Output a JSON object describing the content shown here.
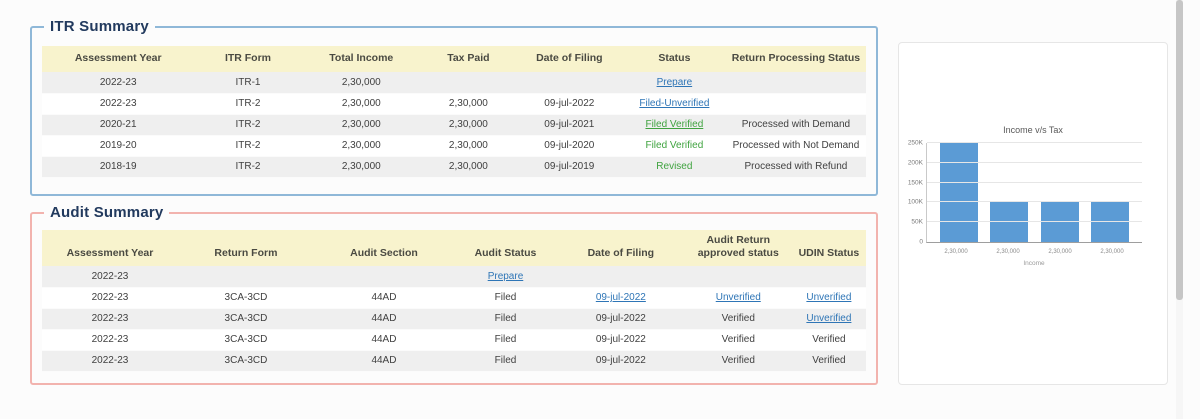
{
  "itr": {
    "title": "ITR Summary",
    "columns": [
      "Assessment Year",
      "ITR Form",
      "Total Income",
      "Tax Paid",
      "Date of Filing",
      "Status",
      "Return Processing Status"
    ],
    "rows": [
      [
        {
          "t": "2022-23"
        },
        {
          "t": "ITR-1"
        },
        {
          "t": "2,30,000"
        },
        {
          "t": ""
        },
        {
          "t": ""
        },
        {
          "t": "Prepare",
          "s": "link"
        },
        {
          "t": ""
        }
      ],
      [
        {
          "t": "2022-23"
        },
        {
          "t": "ITR-2"
        },
        {
          "t": "2,30,000"
        },
        {
          "t": "2,30,000"
        },
        {
          "t": "09-jul-2022"
        },
        {
          "t": "Filed-Unverified",
          "s": "link"
        },
        {
          "t": ""
        }
      ],
      [
        {
          "t": "2020-21"
        },
        {
          "t": "ITR-2"
        },
        {
          "t": "2,30,000"
        },
        {
          "t": "2,30,000"
        },
        {
          "t": "09-jul-2021"
        },
        {
          "t": "Filed Verified",
          "s": "glink"
        },
        {
          "t": "Processed with Demand"
        }
      ],
      [
        {
          "t": "2019-20"
        },
        {
          "t": "ITR-2"
        },
        {
          "t": "2,30,000"
        },
        {
          "t": "2,30,000"
        },
        {
          "t": "09-jul-2020"
        },
        {
          "t": "Filed Verified",
          "s": "green"
        },
        {
          "t": "Processed with Not Demand"
        }
      ],
      [
        {
          "t": "2018-19"
        },
        {
          "t": "ITR-2"
        },
        {
          "t": "2,30,000"
        },
        {
          "t": "2,30,000"
        },
        {
          "t": "09-jul-2019"
        },
        {
          "t": "Revised",
          "s": "green"
        },
        {
          "t": "Processed with Refund"
        }
      ]
    ]
  },
  "audit": {
    "title": "Audit Summary",
    "columns": [
      "Assessment Year",
      "Return Form",
      "Audit Section",
      "Audit Status",
      "Date of Filing",
      "Audit Return approved status",
      "UDIN Status"
    ],
    "rows": [
      [
        {
          "t": "2022-23"
        },
        {
          "t": ""
        },
        {
          "t": ""
        },
        {
          "t": "Prepare",
          "s": "link"
        },
        {
          "t": ""
        },
        {
          "t": ""
        },
        {
          "t": ""
        }
      ],
      [
        {
          "t": "2022-23"
        },
        {
          "t": "3CA-3CD"
        },
        {
          "t": "44AD"
        },
        {
          "t": "Filed"
        },
        {
          "t": "09-jul-2022",
          "s": "link"
        },
        {
          "t": "Unverified",
          "s": "link"
        },
        {
          "t": "Unverified",
          "s": "link"
        }
      ],
      [
        {
          "t": "2022-23"
        },
        {
          "t": "3CA-3CD"
        },
        {
          "t": "44AD"
        },
        {
          "t": "Filed"
        },
        {
          "t": "09-jul-2022"
        },
        {
          "t": "Verified"
        },
        {
          "t": "Unverified",
          "s": "link"
        }
      ],
      [
        {
          "t": "2022-23"
        },
        {
          "t": "3CA-3CD"
        },
        {
          "t": "44AD"
        },
        {
          "t": "Filed"
        },
        {
          "t": "09-jul-2022"
        },
        {
          "t": "Verified"
        },
        {
          "t": "Verified"
        }
      ],
      [
        {
          "t": "2022-23"
        },
        {
          "t": "3CA-3CD"
        },
        {
          "t": "44AD"
        },
        {
          "t": "Filed"
        },
        {
          "t": "09-jul-2022"
        },
        {
          "t": "Verified"
        },
        {
          "t": "Verified"
        }
      ]
    ]
  },
  "chart_data": {
    "type": "bar",
    "title": "Income v/s Tax",
    "xlabel": "Income",
    "categories": [
      "2,30,000",
      "2,30,000",
      "2,30,000",
      "2,30,000"
    ],
    "values": [
      250000,
      100000,
      100000,
      100000
    ],
    "ylim": [
      0,
      250000
    ],
    "yticks": [
      0,
      50000,
      100000,
      150000,
      200000,
      250000
    ],
    "ytick_labels": [
      "0",
      "50K",
      "100K",
      "150K",
      "200K",
      "250K"
    ],
    "bar_color": "#5b9bd5",
    "grid": true,
    "legend": false
  },
  "colors": {
    "header_yellow": "#f8f3cd",
    "row_alt_gray": "#efefef",
    "link_blue": "#2e75b6",
    "status_green": "#3fa33f",
    "itr_border_blue": "#8fb8d8",
    "audit_border_red": "#f2b3ae",
    "bar_blue": "#5b9bd5",
    "legend_navy": "#223a5e"
  }
}
